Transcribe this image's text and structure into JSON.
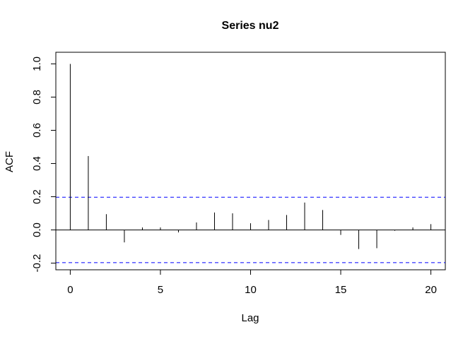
{
  "chart_data": {
    "type": "bar",
    "title": "Series nu2",
    "xlabel": "Lag",
    "ylabel": "ACF",
    "xlim": [
      -0.8,
      20.8
    ],
    "ylim": [
      -0.24,
      1.07
    ],
    "x_ticks": [
      0,
      5,
      10,
      15,
      20
    ],
    "x_tick_labels": [
      "0",
      "5",
      "10",
      "15",
      "20"
    ],
    "y_ticks": [
      -0.2,
      0.0,
      0.2,
      0.4,
      0.6,
      0.8,
      1.0
    ],
    "y_tick_labels": [
      "-0.2",
      "0.0",
      "0.2",
      "0.4",
      "0.6",
      "0.8",
      "1.0"
    ],
    "lags": [
      0,
      1,
      2,
      3,
      4,
      5,
      6,
      7,
      8,
      9,
      10,
      11,
      12,
      13,
      14,
      15,
      16,
      17,
      18,
      19,
      20
    ],
    "acf": [
      1.0,
      0.445,
      0.095,
      -0.075,
      0.015,
      0.015,
      -0.015,
      0.045,
      0.105,
      0.1,
      0.04,
      0.06,
      0.09,
      0.165,
      0.12,
      -0.03,
      -0.115,
      -0.11,
      -0.005,
      0.015,
      0.035
    ],
    "confidence_bounds": [
      0.197,
      -0.197
    ],
    "colors": {
      "bars": "#000000",
      "confidence": "#0000ff",
      "frame": "#000000"
    }
  }
}
